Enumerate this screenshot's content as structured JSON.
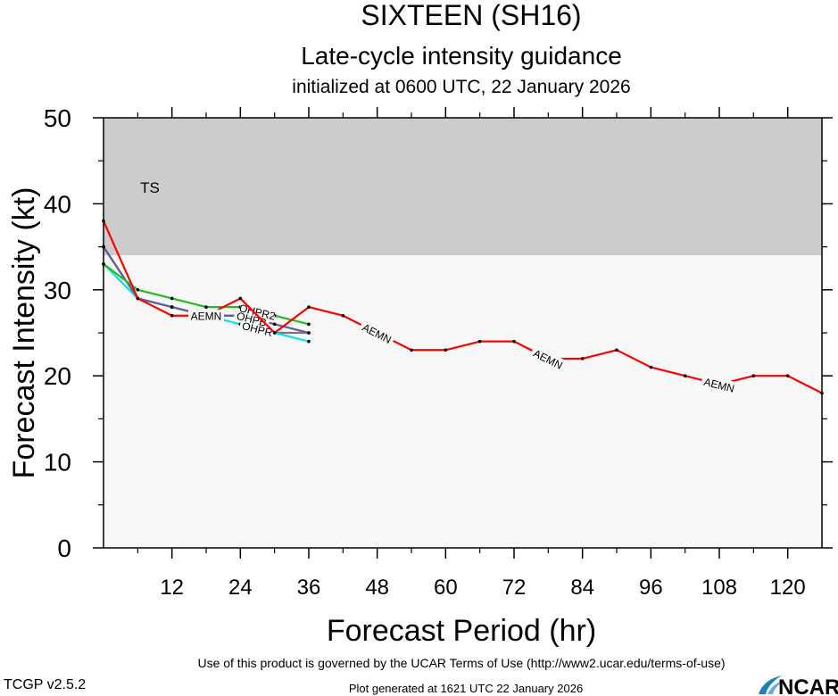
{
  "header": {
    "title": "SIXTEEN (SH16)",
    "subtitle": "Late-cycle intensity guidance",
    "init_line": "initialized at 0600 UTC, 22 January 2026"
  },
  "footer": {
    "terms": "Use of this product is governed by the UCAR Terms of Use (http://www2.ucar.edu/terms-of-use)",
    "version": "TCGP v2.5.2",
    "generated": "Plot generated at 1621 UTC   22 January 2026",
    "logo_text": "NCAR"
  },
  "chart_data": {
    "type": "line",
    "xlabel": "Forecast Period (hr)",
    "ylabel": "Forecast Intensity (kt)",
    "xlim": [
      0,
      126
    ],
    "ylim": [
      0,
      50
    ],
    "x_ticks": [
      12,
      24,
      36,
      48,
      60,
      72,
      84,
      96,
      108,
      120
    ],
    "y_ticks": [
      0,
      10,
      20,
      30,
      40,
      50
    ],
    "bands": [
      {
        "label": "TS",
        "from": 34,
        "to": 50,
        "color": "#cccccc"
      },
      {
        "label": "",
        "from": 0,
        "to": 34,
        "color": "#f8f8f8"
      }
    ],
    "series": [
      {
        "name": "AEMN",
        "color": "#ff0000",
        "x": [
          0,
          6,
          12,
          18,
          24,
          30,
          36,
          42,
          48,
          54,
          60,
          66,
          72,
          78,
          84,
          90,
          96,
          102,
          108,
          114,
          120,
          126
        ],
        "y": [
          38,
          29,
          27,
          27,
          29,
          25,
          28,
          27,
          25,
          23,
          23,
          24,
          24,
          22,
          22,
          23,
          21,
          20,
          19,
          20,
          20,
          18
        ],
        "label_at": [
          18,
          48,
          78,
          108
        ]
      },
      {
        "name": "OHPR2",
        "color": "#22bb22",
        "x": [
          0,
          6,
          12,
          18,
          24,
          30,
          36
        ],
        "y": [
          33,
          30,
          29,
          28,
          28,
          27,
          26
        ],
        "label_at": [
          27
        ]
      },
      {
        "name": "OHPB",
        "color": "#5e5e9e",
        "x": [
          0,
          6,
          12,
          18,
          24,
          30,
          36
        ],
        "y": [
          35,
          29,
          28,
          27,
          27,
          26,
          25
        ],
        "label_at": [
          26
        ]
      },
      {
        "name": "OHPR",
        "color": "#00e5ee",
        "x": [
          0,
          6,
          12,
          18,
          24,
          30,
          36
        ],
        "y": [
          33,
          29,
          28,
          27,
          26,
          25,
          24
        ],
        "label_at": [
          27
        ]
      },
      {
        "name": "",
        "color": "#777777",
        "x": [
          0,
          6,
          12,
          18,
          24,
          30,
          36
        ],
        "y": [
          35,
          29,
          28,
          27,
          27,
          25,
          25
        ],
        "label_at": []
      }
    ]
  }
}
